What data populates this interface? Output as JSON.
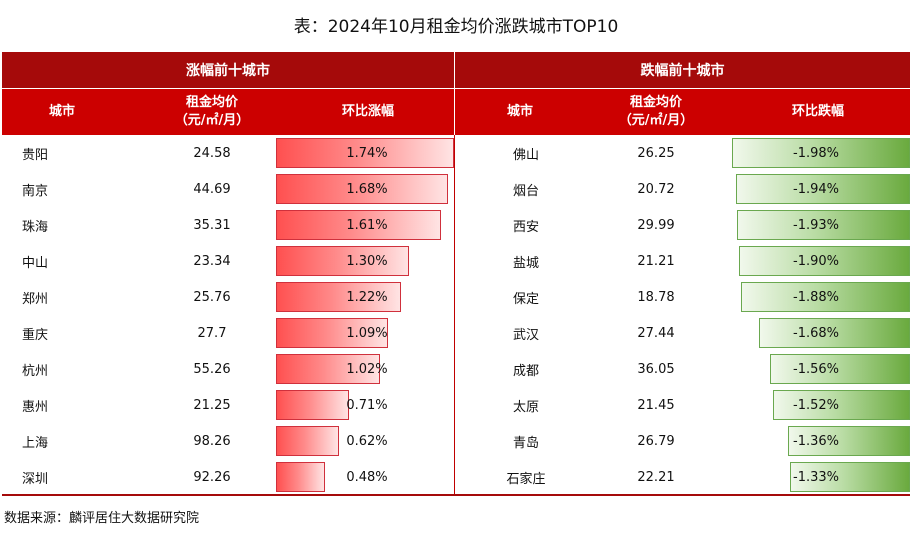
{
  "title": "表：2024年10月租金均价涨跌城市TOP10",
  "groups": {
    "rise": "涨幅前十城市",
    "fall": "跌幅前十城市"
  },
  "headers": {
    "city": "城市",
    "rent_line1": "租金均价",
    "rent_line2": "（元/㎡/月）",
    "rise": "环比涨幅",
    "fall": "环比跌幅"
  },
  "rise_rows": [
    {
      "city": "贵阳",
      "rent": "24.58",
      "change": "1.74%",
      "value": 1.74
    },
    {
      "city": "南京",
      "rent": "44.69",
      "change": "1.68%",
      "value": 1.68
    },
    {
      "city": "珠海",
      "rent": "35.31",
      "change": "1.61%",
      "value": 1.61
    },
    {
      "city": "中山",
      "rent": "23.34",
      "change": "1.30%",
      "value": 1.3
    },
    {
      "city": "郑州",
      "rent": "25.76",
      "change": "1.22%",
      "value": 1.22
    },
    {
      "city": "重庆",
      "rent": "27.7",
      "change": "1.09%",
      "value": 1.09
    },
    {
      "city": "杭州",
      "rent": "55.26",
      "change": "1.02%",
      "value": 1.02
    },
    {
      "city": "惠州",
      "rent": "21.25",
      "change": "0.71%",
      "value": 0.71
    },
    {
      "city": "上海",
      "rent": "98.26",
      "change": "0.62%",
      "value": 0.62
    },
    {
      "city": "深圳",
      "rent": "92.26",
      "change": "0.48%",
      "value": 0.48
    }
  ],
  "fall_rows": [
    {
      "city": "佛山",
      "rent": "26.25",
      "change": "-1.98%",
      "value": -1.98
    },
    {
      "city": "烟台",
      "rent": "20.72",
      "change": "-1.94%",
      "value": -1.94
    },
    {
      "city": "西安",
      "rent": "29.99",
      "change": "-1.93%",
      "value": -1.93
    },
    {
      "city": "盐城",
      "rent": "21.21",
      "change": "-1.90%",
      "value": -1.9
    },
    {
      "city": "保定",
      "rent": "18.78",
      "change": "-1.88%",
      "value": -1.88
    },
    {
      "city": "武汉",
      "rent": "27.44",
      "change": "-1.68%",
      "value": -1.68
    },
    {
      "city": "成都",
      "rent": "36.05",
      "change": "-1.56%",
      "value": -1.56
    },
    {
      "city": "太原",
      "rent": "21.45",
      "change": "-1.52%",
      "value": -1.52
    },
    {
      "city": "青岛",
      "rent": "26.79",
      "change": "-1.36%",
      "value": -1.36
    },
    {
      "city": "石家庄",
      "rent": "22.21",
      "change": "-1.33%",
      "value": -1.33
    }
  ],
  "source": "数据来源：麟评居住大数据研究院",
  "colors": {
    "header_dark": "#a50a0a",
    "header": "#cc0000",
    "rise_bar": "#ff5050",
    "fall_bar": "#6aaa3e"
  }
}
